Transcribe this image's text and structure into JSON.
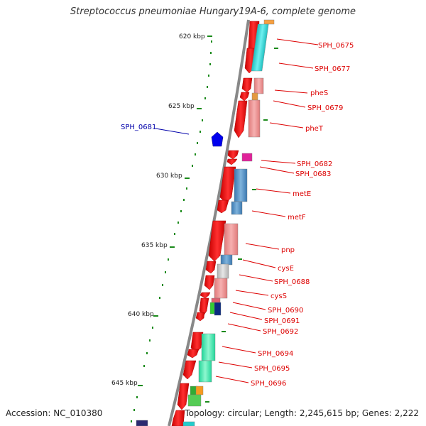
{
  "title": "Streptococcus pneumoniae Hungary19A-6, complete genome",
  "ticks": [
    "620 kbp",
    "625 kbp",
    "630 kbp",
    "635 kbp",
    "640 kbp",
    "645 kbp"
  ],
  "genes": [
    {
      "name": "SPH_0675",
      "color": "#dd0000"
    },
    {
      "name": "SPH_0677",
      "color": "#dd0000"
    },
    {
      "name": "pheS",
      "color": "#dd0000"
    },
    {
      "name": "SPH_0679",
      "color": "#dd0000"
    },
    {
      "name": "pheT",
      "color": "#dd0000"
    },
    {
      "name": "SPH_0681",
      "color": "#0000aa"
    },
    {
      "name": "SPH_0682",
      "color": "#dd0000"
    },
    {
      "name": "SPH_0683",
      "color": "#dd0000"
    },
    {
      "name": "metE",
      "color": "#dd0000"
    },
    {
      "name": "metF",
      "color": "#dd0000"
    },
    {
      "name": "pnp",
      "color": "#dd0000"
    },
    {
      "name": "cysE",
      "color": "#dd0000"
    },
    {
      "name": "SPH_0688",
      "color": "#dd0000"
    },
    {
      "name": "cysS",
      "color": "#dd0000"
    },
    {
      "name": "SPH_0690",
      "color": "#dd0000"
    },
    {
      "name": "SPH_0691",
      "color": "#dd0000"
    },
    {
      "name": "SPH_0692",
      "color": "#dd0000"
    },
    {
      "name": "SPH_0694",
      "color": "#dd0000"
    },
    {
      "name": "SPH_0695",
      "color": "#dd0000"
    },
    {
      "name": "SPH_0696",
      "color": "#dd0000"
    }
  ],
  "footer": {
    "accession": "Accession: NC_010380",
    "topology": "Topology: circular; Length: 2,245,615 bp; Genes: 2,222"
  },
  "colors": {
    "gene_red": "#ff0000",
    "gene_blue": "#0000ee",
    "backbone": "#888888",
    "tick_green": "#1a8a1a"
  }
}
